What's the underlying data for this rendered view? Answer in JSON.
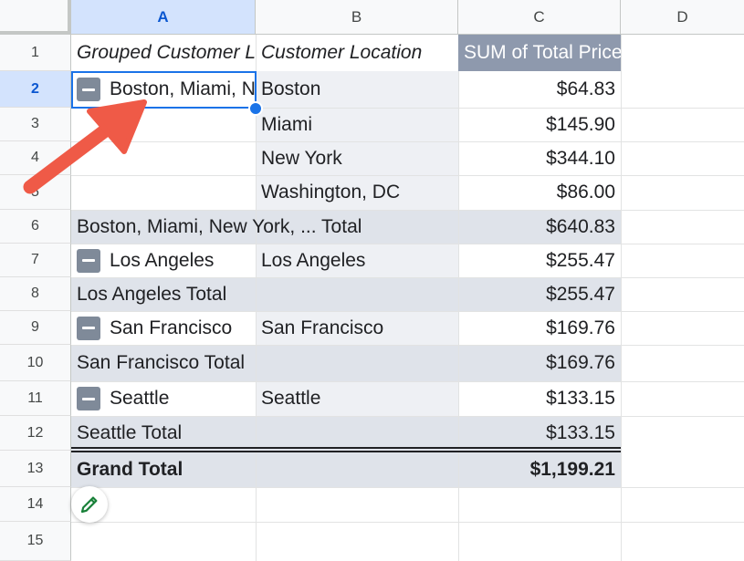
{
  "columns": [
    {
      "letter": "A",
      "selected": true
    },
    {
      "letter": "B",
      "selected": false
    },
    {
      "letter": "C",
      "selected": false
    },
    {
      "letter": "D",
      "selected": false
    }
  ],
  "row_numbers": [
    "1",
    "2",
    "3",
    "4",
    "5",
    "6",
    "7",
    "8",
    "9",
    "10",
    "11",
    "12",
    "13",
    "14",
    "15"
  ],
  "pivot": {
    "header": {
      "col_a": "Grouped Customer Location",
      "col_b": "Customer Location",
      "col_c": "SUM of Total Price"
    },
    "rows": [
      {
        "a": "Boston, Miami, New York, Washington, DC",
        "b": "Boston",
        "c": "$64.83"
      },
      {
        "a": "",
        "b": "Miami",
        "c": "$145.90"
      },
      {
        "a": "",
        "b": "New York",
        "c": "$344.10"
      },
      {
        "a": "",
        "b": "Washington, DC",
        "c": "$86.00"
      },
      {
        "a": "Boston, Miami, New York, ... Total",
        "b": "",
        "c": "$640.83"
      },
      {
        "a": "Los Angeles",
        "b": "Los Angeles",
        "c": "$255.47"
      },
      {
        "a": "Los Angeles Total",
        "b": "",
        "c": "$255.47"
      },
      {
        "a": "San Francisco",
        "b": "San Francisco",
        "c": "$169.76"
      },
      {
        "a": "San Francisco Total",
        "b": "",
        "c": "$169.76"
      },
      {
        "a": "Seattle",
        "b": "Seattle",
        "c": "$133.15"
      },
      {
        "a": "Seattle Total",
        "b": "",
        "c": "$133.15"
      },
      {
        "a": "Grand Total",
        "b": "",
        "c": "$1,199.21"
      }
    ]
  },
  "colors": {
    "header_fill": "#8e99ad",
    "subtotal_fill": "#dfe3ea",
    "group_fill": "#eef0f4",
    "grand_total_fill": "#dfe3ea",
    "selection": "#1a73e8",
    "arrow": "#ef5a47"
  },
  "icons": {
    "collapse": "minus-square-icon",
    "edit": "pencil-icon",
    "annotation": "arrow-icon"
  }
}
